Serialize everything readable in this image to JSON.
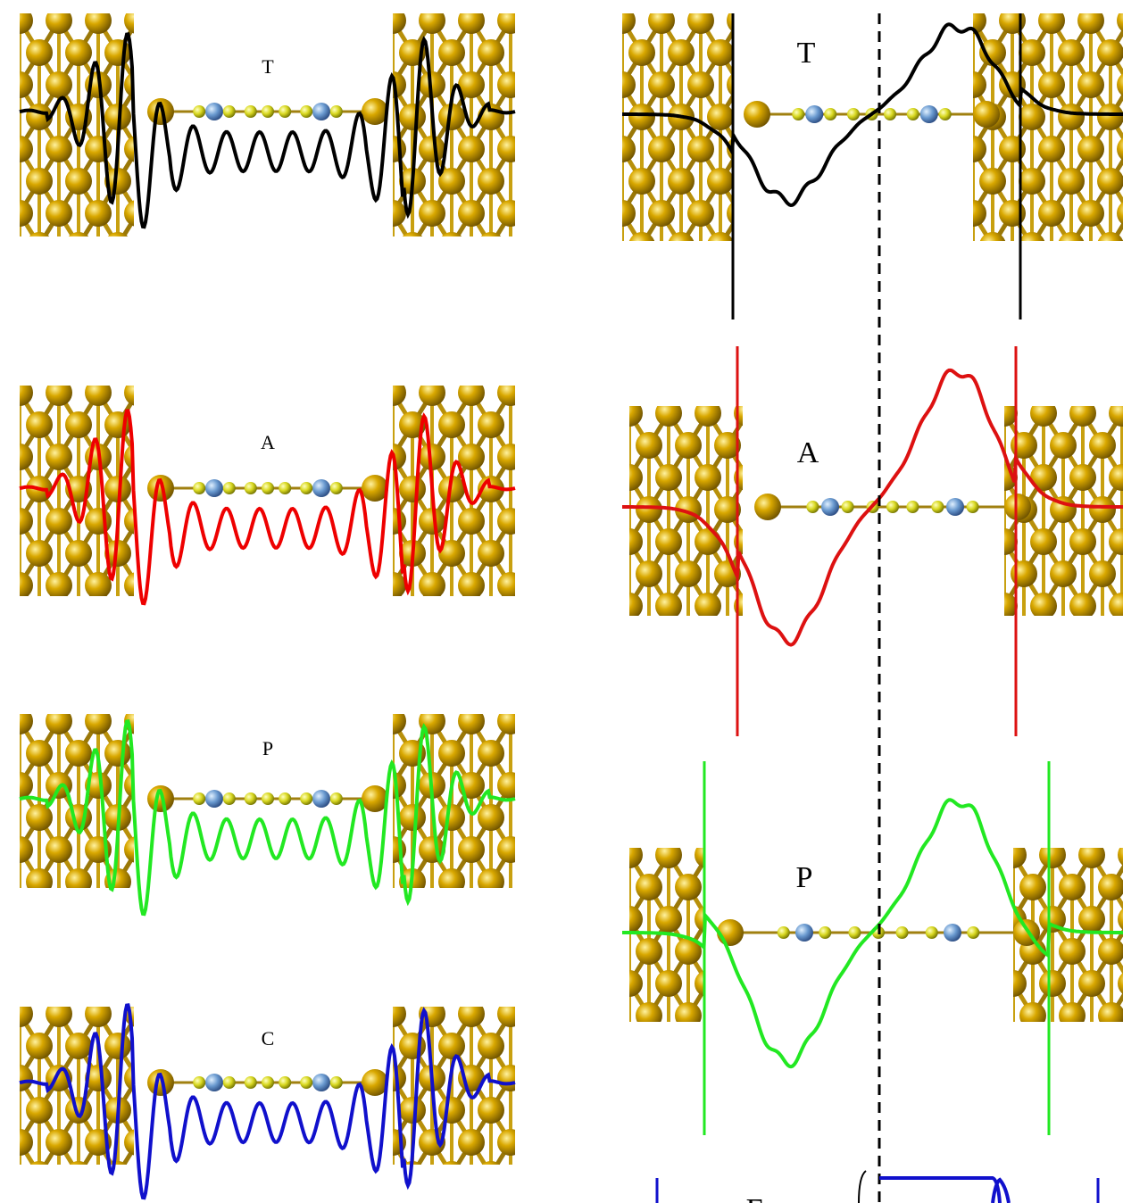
{
  "left_labels": [
    "T",
    "A",
    "P",
    "C"
  ],
  "right_labels": [
    "T",
    "A",
    "P",
    "E"
  ]
}
